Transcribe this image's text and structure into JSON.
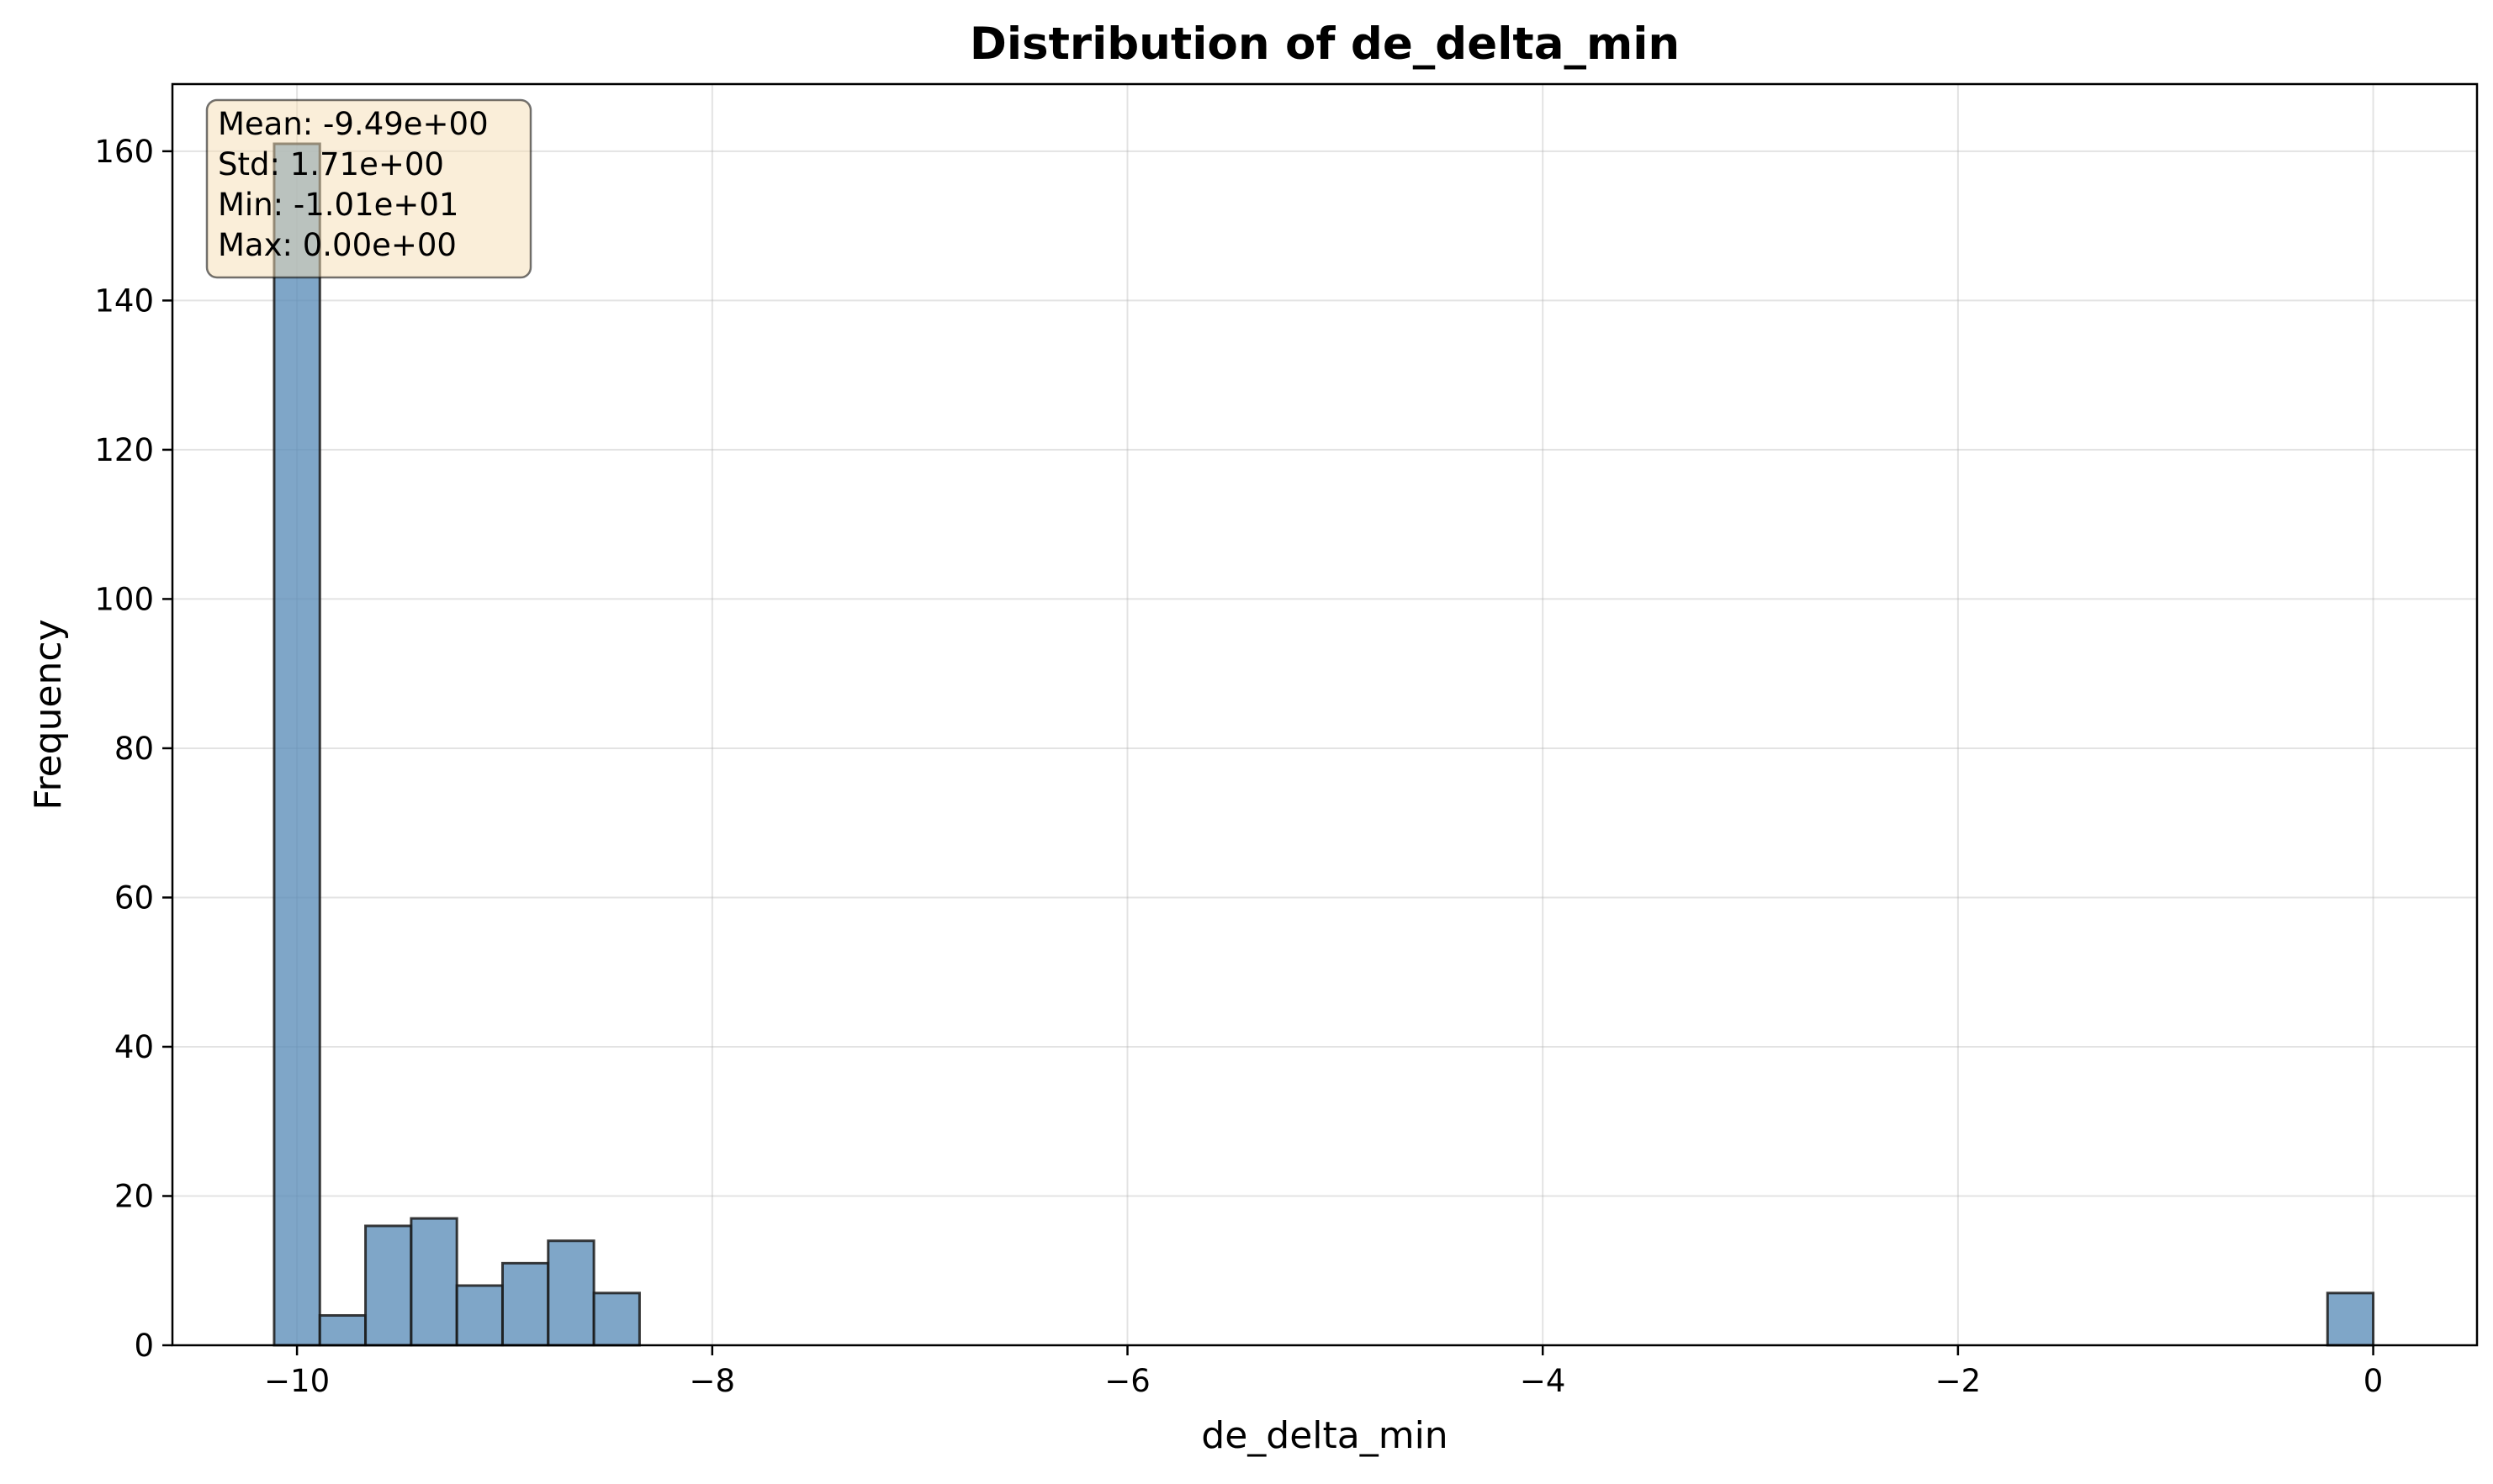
{
  "chart_data": {
    "type": "bar",
    "title": "Distribution of de_delta_min",
    "xlabel": "de_delta_min",
    "ylabel": "Frequency",
    "xlim": [
      -10.6,
      0.5
    ],
    "ylim": [
      0,
      169
    ],
    "xticks": [
      -10,
      -8,
      -6,
      -4,
      -2,
      0
    ],
    "xtick_labels": [
      "−10",
      "−8",
      "−6",
      "−4",
      "−2",
      "0"
    ],
    "yticks": [
      0,
      20,
      40,
      60,
      80,
      100,
      120,
      140,
      160
    ],
    "ytick_labels": [
      "0",
      "20",
      "40",
      "60",
      "80",
      "100",
      "120",
      "140",
      "160"
    ],
    "grid": true,
    "bar_color": "#5b8db8",
    "edge_color": "#1a1a1a",
    "bins": [
      {
        "x0": -10.11,
        "x1": -9.89,
        "count": 161
      },
      {
        "x0": -9.89,
        "x1": -9.67,
        "count": 4
      },
      {
        "x0": -9.67,
        "x1": -9.45,
        "count": 16
      },
      {
        "x0": -9.45,
        "x1": -9.23,
        "count": 17
      },
      {
        "x0": -9.23,
        "x1": -9.01,
        "count": 8
      },
      {
        "x0": -9.01,
        "x1": -8.79,
        "count": 11
      },
      {
        "x0": -8.79,
        "x1": -8.57,
        "count": 14
      },
      {
        "x0": -8.57,
        "x1": -8.35,
        "count": 7
      },
      {
        "x0": -0.22,
        "x1": 0.0,
        "count": 7
      }
    ],
    "stats_box": {
      "lines": [
        "Mean: -9.49e+00",
        "Std: 1.71e+00",
        "Min: -1.01e+01",
        "Max: 0.00e+00"
      ],
      "background": "#f5deb3",
      "placement": "top-left"
    }
  }
}
